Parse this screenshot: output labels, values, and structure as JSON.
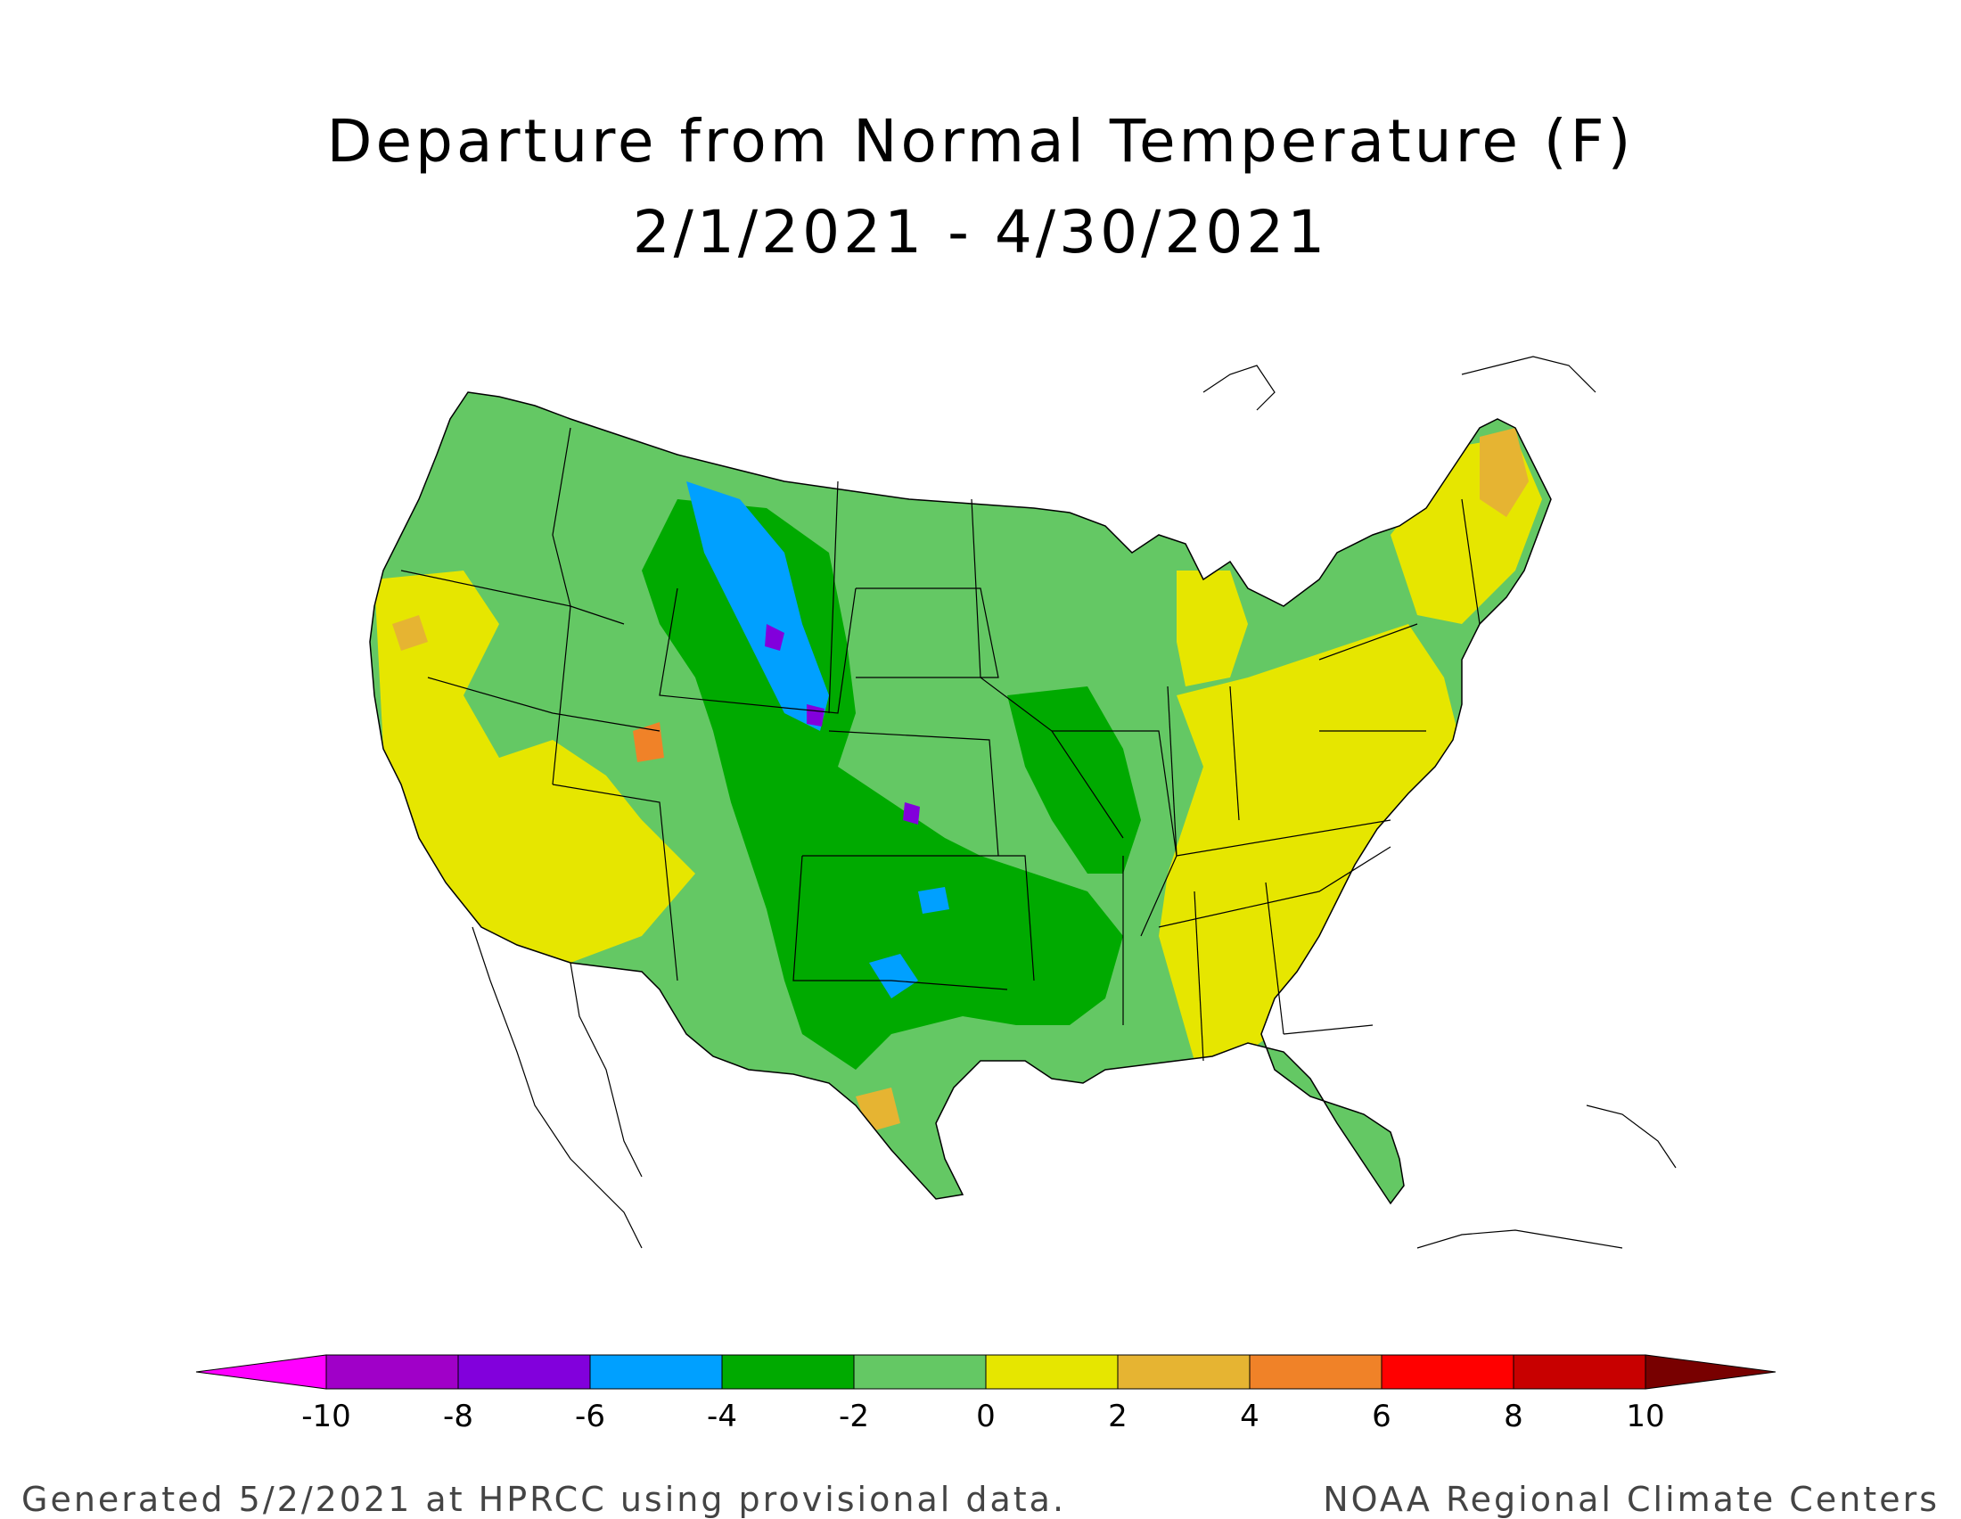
{
  "header": {
    "title": "Departure from Normal Temperature (F)",
    "subtitle": "2/1/2021 - 4/30/2021"
  },
  "legend": {
    "ticks": [
      "-10",
      "-8",
      "-6",
      "-4",
      "-2",
      "0",
      "2",
      "4",
      "6",
      "8",
      "10"
    ],
    "colors": [
      "#ff00ff",
      "#a000c8",
      "#8200dc",
      "#00a0ff",
      "#00aa00",
      "#64c864",
      "#e6e600",
      "#e6b432",
      "#f08228",
      "#ff0000",
      "#c80000",
      "#780000"
    ]
  },
  "footer": {
    "left": "Generated 5/2/2021 at HPRCC using provisional data.",
    "right": "NOAA Regional Climate Centers"
  }
}
